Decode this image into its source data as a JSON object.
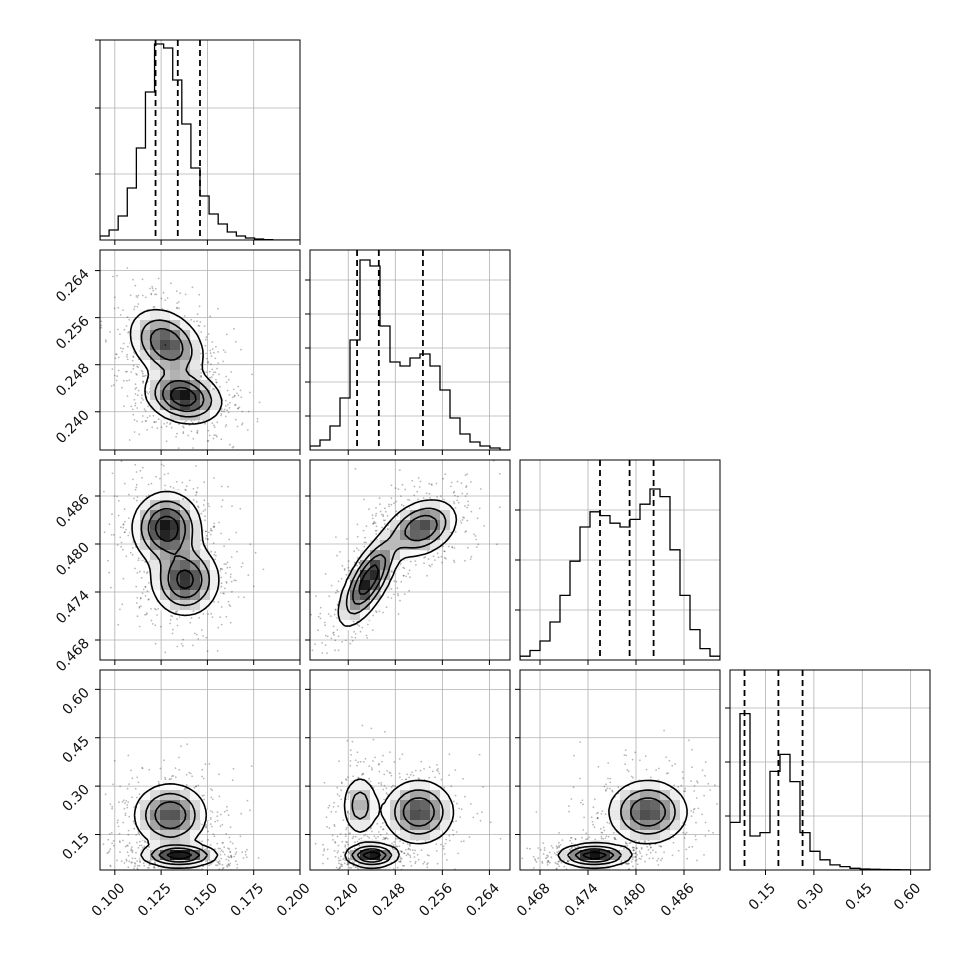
{
  "chart_data": {
    "type": "corner",
    "title": "",
    "parameters": [
      {
        "range": [
          0.092,
          0.2
        ],
        "ticks": [
          0.1,
          0.125,
          0.15,
          0.175,
          0.2
        ],
        "tick_labels": [
          "0.100",
          "0.125",
          "0.150",
          "0.175",
          "0.200"
        ],
        "quantiles": [
          0.122,
          0.134,
          0.146
        ]
      },
      {
        "range": [
          0.2335,
          0.2675
        ],
        "ticks": [
          0.24,
          0.248,
          0.256,
          0.264
        ],
        "tick_labels": [
          "0.240",
          "0.248",
          "0.256",
          "0.264"
        ],
        "quantiles": [
          0.2415,
          0.2452,
          0.2527
        ]
      },
      {
        "range": [
          0.4655,
          0.4905
        ],
        "ticks": [
          0.468,
          0.474,
          0.48,
          0.486
        ],
        "tick_labels": [
          "0.468",
          "0.474",
          "0.480",
          "0.486"
        ],
        "quantiles": [
          0.4755,
          0.4792,
          0.4822
        ]
      },
      {
        "range": [
          0.04,
          0.66
        ],
        "ticks": [
          0.15,
          0.3,
          0.45,
          0.6
        ],
        "tick_labels": [
          "0.15",
          "0.30",
          "0.45",
          "0.60"
        ],
        "quantiles": [
          0.085,
          0.19,
          0.265
        ]
      }
    ],
    "histograms": [
      [
        0.02,
        0.05,
        0.12,
        0.26,
        0.46,
        0.74,
        0.98,
        0.96,
        0.8,
        0.58,
        0.36,
        0.22,
        0.13,
        0.08,
        0.04,
        0.02,
        0.01,
        0.005,
        0.002,
        0.0,
        0.0,
        0.0
      ],
      [
        0.02,
        0.05,
        0.12,
        0.26,
        0.55,
        0.95,
        0.92,
        0.62,
        0.44,
        0.42,
        0.46,
        0.48,
        0.42,
        0.3,
        0.16,
        0.08,
        0.04,
        0.02,
        0.01,
        0.0
      ],
      [
        0.02,
        0.05,
        0.1,
        0.2,
        0.34,
        0.52,
        0.7,
        0.78,
        0.76,
        0.72,
        0.7,
        0.74,
        0.82,
        0.9,
        0.86,
        0.58,
        0.34,
        0.16,
        0.06,
        0.02
      ],
      [
        0.28,
        0.92,
        0.2,
        0.22,
        0.58,
        0.68,
        0.52,
        0.22,
        0.11,
        0.06,
        0.03,
        0.02,
        0.01,
        0.006,
        0.004,
        0.003,
        0.002,
        0.001,
        0.0,
        0.0
      ]
    ],
    "hist_peaks": [
      1.0,
      1.0,
      0.95,
      0.85
    ],
    "hist_y_ticks": [
      [
        0.33,
        0.66,
        1.0
      ],
      [
        0.17,
        0.34,
        0.51,
        0.68,
        0.85
      ],
      [
        0.25,
        0.5,
        0.75
      ],
      [
        0.27,
        0.54,
        0.81
      ]
    ],
    "joint_modes": {
      "1-0": [
        {
          "x": 0.128,
          "y": 0.2515,
          "sx": 0.01,
          "sy": 0.003,
          "w": 0.8,
          "r": -0.3
        },
        {
          "x": 0.137,
          "y": 0.2425,
          "sx": 0.01,
          "sy": 0.0022,
          "w": 1.0,
          "r": -0.2
        }
      ],
      "2-0": [
        {
          "x": 0.128,
          "y": 0.482,
          "sx": 0.009,
          "sy": 0.0022,
          "w": 1.0,
          "r": 0.0
        },
        {
          "x": 0.138,
          "y": 0.4755,
          "sx": 0.009,
          "sy": 0.0022,
          "w": 0.9,
          "r": 0.0
        }
      ],
      "2-1": [
        {
          "x": 0.2435,
          "y": 0.4755,
          "sx": 0.0025,
          "sy": 0.0028,
          "w": 1.0,
          "r": 0.7
        },
        {
          "x": 0.2525,
          "y": 0.482,
          "sx": 0.003,
          "sy": 0.0018,
          "w": 0.8,
          "r": 0.3
        }
      ],
      "3-0": [
        {
          "x": 0.13,
          "y": 0.21,
          "sx": 0.01,
          "sy": 0.05,
          "w": 0.8,
          "r": 0.0
        },
        {
          "x": 0.135,
          "y": 0.085,
          "sx": 0.01,
          "sy": 0.018,
          "w": 1.0,
          "r": 0.0
        }
      ],
      "3-1": [
        {
          "x": 0.244,
          "y": 0.085,
          "sx": 0.0022,
          "sy": 0.018,
          "w": 1.0,
          "r": 0.0
        },
        {
          "x": 0.252,
          "y": 0.22,
          "sx": 0.003,
          "sy": 0.05,
          "w": 0.8,
          "r": 0.0
        },
        {
          "x": 0.242,
          "y": 0.24,
          "sx": 0.0016,
          "sy": 0.05,
          "w": 0.45,
          "r": 0.0
        }
      ],
      "3-2": [
        {
          "x": 0.4748,
          "y": 0.085,
          "sx": 0.0022,
          "sy": 0.018,
          "w": 1.0,
          "r": 0.0
        },
        {
          "x": 0.4815,
          "y": 0.22,
          "sx": 0.0025,
          "sy": 0.05,
          "w": 0.8,
          "r": 0.0
        }
      ]
    }
  }
}
